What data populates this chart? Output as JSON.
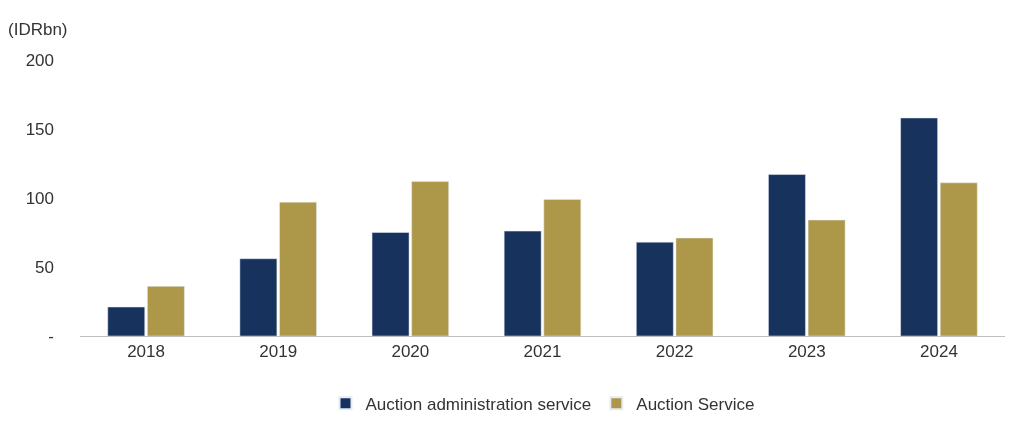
{
  "chart_data": {
    "type": "bar",
    "ylabel": "(IDRbn)",
    "categories": [
      "2018",
      "2019",
      "2020",
      "2021",
      "2022",
      "2023",
      "2024"
    ],
    "series": [
      {
        "name": "Auction administration service",
        "color": "#17325c",
        "values": [
          21,
          56,
          75,
          76,
          68,
          117,
          158
        ]
      },
      {
        "name": "Auction Service",
        "color": "#ad9748",
        "values": [
          36,
          97,
          112,
          99,
          71,
          84,
          111
        ]
      }
    ],
    "ylim": [
      0,
      200
    ],
    "yticks": [
      {
        "value": 0,
        "label": "-"
      },
      50,
      100,
      150,
      200
    ],
    "legend": "bottom"
  }
}
